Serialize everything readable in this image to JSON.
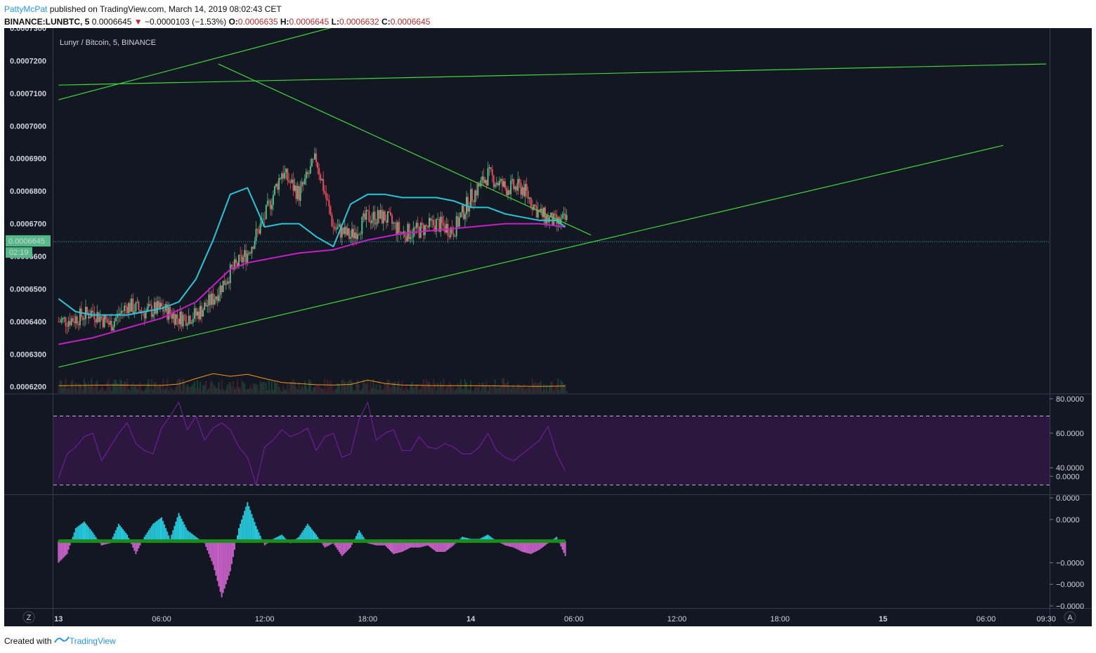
{
  "header": {
    "user": "PattyMcPat",
    "published_text": "published on TradingView.com, March 14, 2019 08:02:43 CET",
    "symbol": "BINANCE:LUNBTC, 5",
    "last": "0.0006645",
    "change": "−0.0000103 (−1.53%)",
    "o_label": "O:",
    "o": "0.0006635",
    "h_label": "H:",
    "h": "0.0006645",
    "l_label": "L:",
    "l": "0.0006632",
    "c_label": "C:",
    "c": "0.0006645"
  },
  "footer": {
    "created_with": "Created with",
    "brand": "TradingView"
  },
  "colors": {
    "background": "#131722",
    "up_candle": "#53b987",
    "down_candle": "#eb4d5c",
    "trendline": "#3dd93d",
    "ema_fast": "#26c6da",
    "ema_slow": "#c71fc7",
    "volume_ma": "#f7931a",
    "rsi_line": "#7b1fa2",
    "rsi_band": "#2b1740",
    "hist_up": "#26c6da",
    "hist_down": "#c45fc4",
    "zero_line": "#1b8c1b",
    "price_label": "#53b987"
  },
  "chart_data": [
    {
      "type": "candlestick",
      "title": "Lunyr / Bitcoin, 5, BINANCE",
      "ylim": [
        0.000618,
        0.00073
      ],
      "y_ticks": [
        "0.0007300",
        "0.0007200",
        "0.0007100",
        "0.0007000",
        "0.0006900",
        "0.0006800",
        "0.0006700",
        "0.0006600",
        "0.0006500",
        "0.0006400",
        "0.0006300",
        "0.0006200"
      ],
      "y_tick_values": [
        0.00073,
        0.00072,
        0.00071,
        0.0007,
        0.00069,
        0.00068,
        0.00067,
        0.00066,
        0.00065,
        0.00064,
        0.00063,
        0.00062
      ],
      "current_price": {
        "value": 0.0006645,
        "label": "0.0006645",
        "countdown": "02:19"
      },
      "x_ticks": [
        "13",
        "06:00",
        "12:00",
        "18:00",
        "14",
        "06:00",
        "12:00",
        "18:00",
        "15",
        "06:00",
        "09:30"
      ],
      "x_tick_hours": [
        0,
        6,
        12,
        18,
        24,
        30,
        36,
        42,
        48,
        54,
        57.5
      ],
      "x_hour_range": [
        -0.3,
        57.7
      ],
      "series_close_hourly": {
        "start_hour": 0,
        "values": [
          0.00064,
          0.000641,
          0.000643,
          0.000639,
          0.000645,
          0.000643,
          0.000644,
          0.000641,
          0.000642,
          0.000647,
          0.000655,
          0.000661,
          0.000672,
          0.000686,
          0.000679,
          0.00069,
          0.000669,
          0.000666,
          0.000672,
          0.000672,
          0.000667,
          0.000668,
          0.00067,
          0.000668,
          0.000678,
          0.000685,
          0.000681,
          0.000681,
          0.000673,
          0.00067,
          0.000672,
          0.000686,
          0.000675,
          0.000674,
          0.000673,
          0.000672,
          0.000669,
          0.000665,
          0.000669,
          0.000668,
          0.000671,
          0.000671,
          0.00067,
          0.000664,
          0.000664,
          0.000665
        ]
      },
      "ema_fast": {
        "hours": [
          0,
          1,
          2,
          3,
          4,
          5,
          6,
          7,
          8,
          9,
          10,
          11,
          12,
          13,
          14,
          15,
          16,
          17,
          18,
          19,
          20,
          21,
          22,
          23,
          24,
          25,
          26,
          27,
          28,
          29,
          29.5
        ],
        "values": [
          0.000647,
          0.000643,
          0.000642,
          0.000642,
          0.000642,
          0.000643,
          0.000644,
          0.000646,
          0.000653,
          0.000665,
          0.000679,
          0.000681,
          0.000669,
          0.00067,
          0.00067,
          0.000666,
          0.000663,
          0.000676,
          0.000679,
          0.000679,
          0.000678,
          0.000678,
          0.000678,
          0.000677,
          0.000675,
          0.000675,
          0.000673,
          0.000672,
          0.000671,
          0.000671,
          0.000669
        ]
      },
      "ema_slow": {
        "hours": [
          0,
          2,
          4,
          6,
          8,
          10,
          11,
          12,
          14,
          16,
          18,
          20,
          22,
          24,
          26,
          28,
          29.5
        ],
        "values": [
          0.000633,
          0.000635,
          0.000638,
          0.000641,
          0.000646,
          0.000656,
          0.000658,
          0.000659,
          0.000661,
          0.000662,
          0.000665,
          0.000667,
          0.000668,
          0.000669,
          0.00067,
          0.00067,
          0.000669
        ]
      },
      "trendlines": [
        {
          "from": [
            0,
            0.000708
          ],
          "to": [
            16.5,
            0.000731
          ]
        },
        {
          "from": [
            0,
            0.0007125
          ],
          "to": [
            57.5,
            0.000719
          ]
        },
        {
          "from": [
            9.3,
            0.000719
          ],
          "to": [
            31.0,
            0.0006665
          ]
        },
        {
          "from": [
            0,
            0.000626
          ],
          "to": [
            55.0,
            0.000694
          ]
        }
      ],
      "volume_ma": {
        "hours": [
          0,
          3,
          6,
          7,
          8,
          9,
          10,
          11,
          12,
          13,
          15,
          16,
          17,
          18,
          19,
          20,
          22,
          24,
          26,
          28,
          29.5
        ],
        "values": [
          0.0006203,
          0.0006205,
          0.0006204,
          0.0006208,
          0.0006225,
          0.000624,
          0.0006232,
          0.0006238,
          0.0006225,
          0.0006213,
          0.0006206,
          0.0006205,
          0.0006207,
          0.000622,
          0.000621,
          0.0006205,
          0.0006203,
          0.0006203,
          0.0006202,
          0.0006201,
          0.0006202
        ]
      }
    },
    {
      "type": "line",
      "title": "",
      "ylim": [
        25,
        82
      ],
      "y_ticks": [
        "80.0000",
        "60.0000",
        "40.0000"
      ],
      "y_tick_values": [
        80,
        60,
        40
      ],
      "band": [
        30,
        70
      ],
      "series": [
        {
          "hours": [
            0,
            0.5,
            1,
            1.5,
            2,
            2.5,
            3,
            3.5,
            4,
            4.5,
            5,
            5.5,
            6,
            6.5,
            7,
            7.5,
            8,
            8.5,
            9,
            9.5,
            10,
            10.5,
            11,
            11.5,
            12,
            12.5,
            13,
            13.5,
            14,
            14.5,
            15,
            15.5,
            16,
            16.5,
            17,
            17.5,
            18,
            18.5,
            19,
            19.5,
            20,
            20.5,
            21,
            21.5,
            22,
            22.5,
            23,
            23.5,
            24,
            24.5,
            25,
            25.5,
            26,
            26.5,
            27,
            27.5,
            28,
            28.5,
            29,
            29.5
          ],
          "values": [
            34,
            48,
            52,
            58,
            60,
            44,
            52,
            60,
            66,
            54,
            50,
            48,
            63,
            70,
            78,
            62,
            70,
            56,
            63,
            66,
            62,
            52,
            46,
            30,
            52,
            56,
            62,
            58,
            60,
            63,
            50,
            58,
            60,
            46,
            48,
            68,
            78,
            56,
            60,
            62,
            50,
            50,
            58,
            52,
            51,
            54,
            52,
            48,
            48,
            52,
            60,
            50,
            46,
            44,
            48,
            52,
            56,
            64,
            48,
            38
          ]
        }
      ]
    },
    {
      "type": "bar",
      "title": "",
      "y_ticks": [
        "0.0000",
        "0.0000",
        "0.0000",
        "−0.0000",
        "−0.0000",
        "−0.0000"
      ],
      "y_tick_values": [
        0.3,
        0.2,
        0.1,
        -0.1,
        -0.2,
        -0.3
      ],
      "ylim": [
        -0.31,
        0.21
      ],
      "series": [
        {
          "hours": [
            0,
            0.5,
            1,
            1.5,
            2,
            2.5,
            3,
            3.5,
            4,
            4.5,
            5,
            5.5,
            6,
            6.5,
            7,
            7.5,
            8,
            8.5,
            9,
            9.5,
            10,
            10.5,
            11,
            11.5,
            12,
            12.5,
            13,
            13.5,
            14,
            14.5,
            15,
            15.5,
            16,
            16.5,
            17,
            17.5,
            18,
            18.5,
            19,
            19.5,
            20,
            20.5,
            21,
            21.5,
            22,
            22.5,
            23,
            23.5,
            24,
            24.5,
            25,
            25.5,
            26,
            26.5,
            27,
            27.5,
            28,
            28.5,
            29,
            29.5
          ],
          "values": [
            -0.1,
            -0.06,
            0.06,
            0.09,
            0.04,
            -0.02,
            -0.01,
            0.08,
            0.03,
            -0.06,
            0.02,
            0.08,
            0.11,
            0.01,
            0.13,
            0.05,
            0.02,
            -0.01,
            -0.11,
            -0.26,
            -0.14,
            0.06,
            0.18,
            0.07,
            -0.02,
            0.01,
            0.03,
            -0.01,
            0.02,
            0.08,
            0.03,
            -0.03,
            -0.01,
            -0.07,
            -0.03,
            0.05,
            -0.01,
            -0.02,
            -0.02,
            -0.06,
            -0.05,
            -0.03,
            -0.03,
            -0.02,
            -0.05,
            -0.05,
            -0.02,
            0.02,
            0.01,
            0.01,
            0.03,
            0.0,
            -0.02,
            -0.03,
            -0.05,
            -0.06,
            -0.04,
            -0.01,
            0.02,
            -0.07
          ]
        }
      ]
    }
  ]
}
